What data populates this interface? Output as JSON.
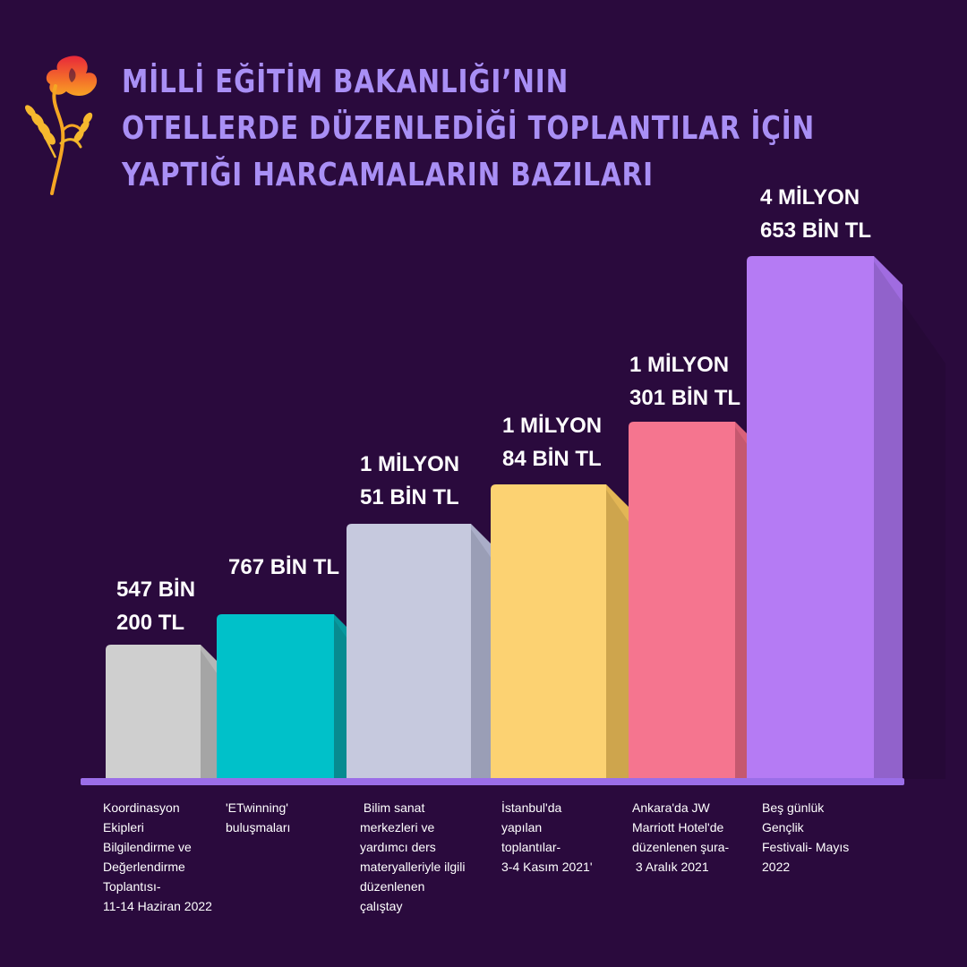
{
  "title": {
    "lines": [
      "MİLLİ EĞİTİM BAKANLIĞI’NIN",
      "OTELLERDE DÜZENLEDİĞİ TOPLANTILAR İÇİN",
      "YAPTIĞI HARCAMALARIN BAZILARI"
    ]
  },
  "colors": {
    "background": "#2a0a3d",
    "title": "#a98ff5",
    "baseline": "#9b6ee8",
    "bars": [
      "#cfcfcf",
      "#00c1c9",
      "#c6c9de",
      "#fcd272",
      "#f5758f",
      "#b57bf4"
    ],
    "bar_sides": [
      "#b6b6b6",
      "#08999f",
      "#aaaec8",
      "#e3b655",
      "#d9617a",
      "#a06ce0"
    ]
  },
  "chart_data": {
    "type": "bar",
    "categories": [
      "Koordinasyon Ekipleri Bilgilendirme ve Değerlendirme Toplantısı- 11-14 Haziran 2022",
      "'ETwinning' buluşmaları",
      "Bilim sanat merkezleri ve yardımcı ders materyalleriyle ilgili düzenlenen çalıştay",
      "İstanbul'da yapılan toplantılar- 3-4 Kasım 2021'",
      "Ankara'da JW Marriott Hotel'de düzenlenen şura- 3 Aralık 2021",
      "Beş günlük Gençlik Festivali- Mayıs 2022"
    ],
    "category_lines": [
      [
        "Koordinasyon",
        "Ekipleri",
        "Bilgilendirme ve",
        "Değerlendirme",
        "Toplantısı-",
        "11-14 Haziran 2022"
      ],
      [
        "'ETwinning'",
        "buluşmaları"
      ],
      [
        " Bilim sanat",
        "merkezleri ve",
        "yardımcı ders",
        "materyalleriyle ilgili",
        "düzenlenen",
        "çalıştay"
      ],
      [
        "İstanbul'da",
        "yapılan",
        "toplantılar-",
        "3-4 Kasım 2021'"
      ],
      [
        "Ankara'da JW",
        "Marriott Hotel'de",
        "düzenlenen şura-",
        " 3 Aralık 2021"
      ],
      [
        "Beş günlük",
        "Gençlik",
        "Festivali- Mayıs",
        "2022"
      ]
    ],
    "values": [
      547200,
      767000,
      1051000,
      1084000,
      1301000,
      4653000
    ],
    "unit": "TL",
    "data_labels": [
      [
        "547 BİN",
        "200 TL"
      ],
      [
        "767 BİN TL"
      ],
      [
        "1 MİLYON",
        "51 BİN TL"
      ],
      [
        "1 MİLYON",
        "84 BİN TL"
      ],
      [
        "1 MİLYON",
        " 301 BİN TL"
      ],
      [
        "4 MİLYON",
        "653 BİN TL"
      ]
    ]
  }
}
